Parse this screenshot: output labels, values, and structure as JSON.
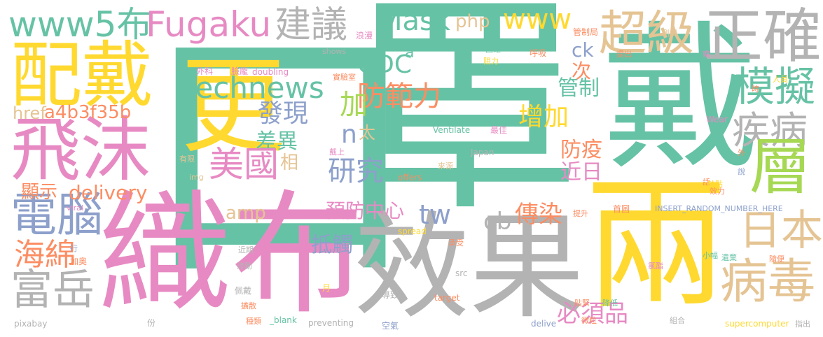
{
  "palette": {
    "teal": "#66c2a5",
    "orange": "#fc8d62",
    "blue": "#8da0cb",
    "pink": "#e78ac3",
    "lime": "#a6d854",
    "yellow": "#ffd92f",
    "tan": "#e5c494",
    "gray": "#b3b3b3"
  },
  "words": [
    {
      "text": "口",
      "color": "teal"
    },
    {
      "text": "罩",
      "color": "teal"
    },
    {
      "text": "戴",
      "color": "teal"
    },
    {
      "text": "織布",
      "color": "pink"
    },
    {
      "text": "效果",
      "color": "gray"
    },
    {
      "text": "兩",
      "color": "yellow"
    },
    {
      "text": "更",
      "color": "yellow"
    },
    {
      "text": "配戴",
      "color": "yellow"
    },
    {
      "text": "飛沫",
      "color": "pink"
    },
    {
      "text": "正確",
      "color": "gray"
    },
    {
      "text": "超級",
      "color": "tan"
    },
    {
      "text": "模擬",
      "color": "teal"
    },
    {
      "text": "疾病",
      "color": "gray"
    },
    {
      "text": "層",
      "color": "lime"
    },
    {
      "text": "日本",
      "color": "tan"
    },
    {
      "text": "病毒",
      "color": "tan"
    },
    {
      "text": "電腦",
      "color": "blue"
    },
    {
      "text": "富岳",
      "color": "gray"
    },
    {
      "text": "海綿",
      "color": "orange"
    },
    {
      "text": "www5布",
      "color": "teal"
    },
    {
      "text": "Fugaku",
      "color": "pink"
    },
    {
      "text": "建議",
      "color": "gray"
    },
    {
      "text": "Mask",
      "color": "teal"
    },
    {
      "text": "www",
      "color": "yellow"
    },
    {
      "text": "php",
      "color": "tan"
    },
    {
      "text": "technews",
      "color": "teal"
    },
    {
      "text": "發現",
      "color": "blue"
    },
    {
      "text": "差異",
      "color": "teal"
    },
    {
      "text": "美國",
      "color": "pink"
    },
    {
      "text": "相",
      "color": "tan"
    },
    {
      "text": "研究",
      "color": "blue"
    },
    {
      "text": "CDC",
      "color": "teal"
    },
    {
      "text": "防範力",
      "color": "orange"
    },
    {
      "text": "加",
      "color": "lime"
    },
    {
      "text": "n",
      "color": "blue"
    },
    {
      "text": "太",
      "color": "tan"
    },
    {
      "text": "a4b3f35b",
      "color": "orange"
    },
    {
      "text": "href",
      "color": "tan"
    },
    {
      "text": "顯示",
      "color": "orange"
    },
    {
      "text": "delivery",
      "color": "orange"
    },
    {
      "text": "amp",
      "color": "tan"
    },
    {
      "text": "tw",
      "color": "blue"
    },
    {
      "text": "預防中心",
      "color": "pink"
    },
    {
      "text": "抵觸",
      "color": "blue"
    },
    {
      "text": "cb",
      "color": "gray"
    },
    {
      "text": "傳染",
      "color": "orange"
    },
    {
      "text": "必須品",
      "color": "pink"
    },
    {
      "text": "增加",
      "color": "yellow"
    },
    {
      "text": "管制",
      "color": "teal"
    },
    {
      "text": "防疫",
      "color": "orange"
    },
    {
      "text": "近日",
      "color": "pink"
    },
    {
      "text": "次",
      "color": "orange"
    },
    {
      "text": "ck",
      "color": "blue"
    },
    {
      "text": "a",
      "color": "teal"
    },
    {
      "text": "外科",
      "color": "pink"
    },
    {
      "text": "臉龐",
      "color": "pink"
    },
    {
      "text": "doubling",
      "color": "pink"
    },
    {
      "text": "有限",
      "color": "tan"
    },
    {
      "text": "img",
      "color": "tan"
    },
    {
      "text": "Ventilate",
      "color": "teal"
    },
    {
      "text": "最佳",
      "color": "pink"
    },
    {
      "text": "Japan",
      "color": "gray"
    },
    {
      "text": "COVID",
      "color": "teal"
    },
    {
      "text": "offers",
      "color": "orange"
    },
    {
      "text": "來源",
      "color": "tan"
    },
    {
      "text": "浪漫",
      "color": "pink"
    },
    {
      "text": "shows",
      "color": "gray"
    },
    {
      "text": "困難",
      "color": "teal"
    },
    {
      "text": "阻力",
      "color": "yellow"
    },
    {
      "text": "呼吸",
      "color": "orange"
    },
    {
      "text": "管制局",
      "color": "orange"
    },
    {
      "text": "測試",
      "color": "tan"
    },
    {
      "text": "提出",
      "color": "orange"
    },
    {
      "text": "察",
      "color": "pink"
    },
    {
      "text": "實驗室",
      "color": "orange"
    },
    {
      "text": "人員",
      "color": "yellow"
    },
    {
      "text": "時",
      "color": "orange"
    },
    {
      "text": "Wear",
      "color": "pink"
    },
    {
      "text": "外",
      "color": "orange"
    },
    {
      "text": "說",
      "color": "blue"
    },
    {
      "text": "話",
      "color": "orange"
    },
    {
      "text": "缺點",
      "color": "yellow"
    },
    {
      "text": "效力",
      "color": "orange"
    },
    {
      "text": "戴上",
      "color": "pink"
    },
    {
      "text": "viral",
      "color": "pink"
    },
    {
      "text": "提升",
      "color": "orange"
    },
    {
      "text": "首圖",
      "color": "orange"
    },
    {
      "text": "INSERT_RANDOM_NUMBER_HERE",
      "color": "blue"
    },
    {
      "text": "spread",
      "color": "yellow"
    },
    {
      "text": "承受",
      "color": "orange"
    },
    {
      "text": "行",
      "color": "blue"
    },
    {
      "text": "加奧",
      "color": "orange"
    },
    {
      "text": "近期",
      "color": "gray"
    },
    {
      "text": "流動",
      "color": "gray"
    },
    {
      "text": "小幅",
      "color": "teal"
    },
    {
      "text": "遺棄",
      "color": "teal"
    },
    {
      "text": "隨便",
      "color": "orange"
    },
    {
      "text": "氯酯",
      "color": "pink"
    },
    {
      "text": "src",
      "color": "gray"
    },
    {
      "text": "佩戴",
      "color": "gray"
    },
    {
      "text": "導致",
      "color": "gray"
    },
    {
      "text": "月",
      "color": "yellow"
    },
    {
      "text": "target",
      "color": "orange"
    },
    {
      "text": "貼緊",
      "color": "orange"
    },
    {
      "text": "降低",
      "color": "teal"
    },
    {
      "text": "擴散",
      "color": "orange"
    },
    {
      "text": "pixabay",
      "color": "gray"
    },
    {
      "text": "份",
      "color": "gray"
    },
    {
      "text": "種類",
      "color": "orange"
    },
    {
      "text": "_blank",
      "color": "teal"
    },
    {
      "text": "preventing",
      "color": "gray"
    },
    {
      "text": "空氣",
      "color": "blue"
    },
    {
      "text": "delive",
      "color": "blue"
    },
    {
      "text": "微粒",
      "color": "orange"
    },
    {
      "text": "組合",
      "color": "gray"
    },
    {
      "text": "supercomputer",
      "color": "yellow"
    },
    {
      "text": "指出",
      "color": "gray"
    }
  ]
}
